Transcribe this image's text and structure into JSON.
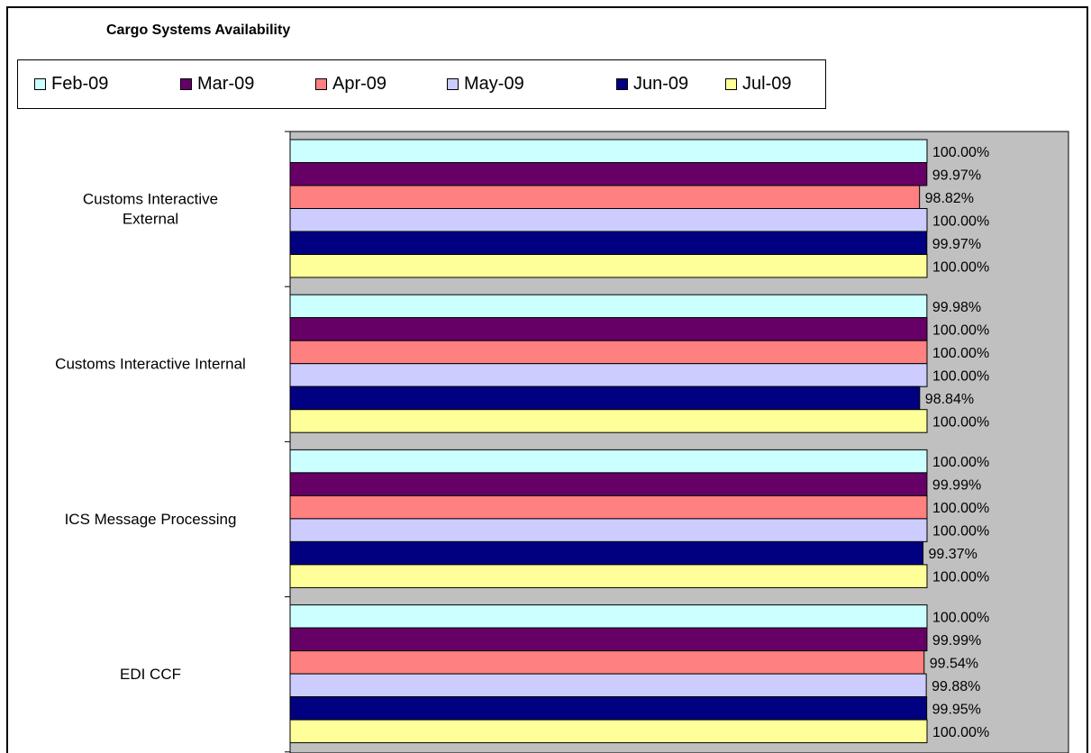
{
  "chart_data": {
    "type": "bar",
    "orientation": "horizontal",
    "title": "Cargo Systems Availability",
    "xlim": [
      0.0,
      1.0
    ],
    "grid": false,
    "legend_position": "top",
    "categories": [
      [
        "Customs Interactive",
        "External"
      ],
      [
        "Customs Interactive Internal"
      ],
      [
        "ICS Message Processing"
      ],
      [
        "EDI CCF"
      ]
    ],
    "series": [
      {
        "name": "Feb-09",
        "color": "#ccffff",
        "values": [
          1.0,
          0.9998,
          1.0,
          1.0
        ],
        "labels": [
          "100.00%",
          "99.98%",
          "100.00%",
          "100.00%"
        ]
      },
      {
        "name": "Mar-09",
        "color": "#660066",
        "values": [
          0.9997,
          1.0,
          0.9999,
          0.9999
        ],
        "labels": [
          "99.97%",
          "100.00%",
          "99.99%",
          "99.99%"
        ]
      },
      {
        "name": "Apr-09",
        "color": "#ff8080",
        "values": [
          0.9882,
          1.0,
          1.0,
          0.9954
        ],
        "labels": [
          "98.82%",
          "100.00%",
          "100.00%",
          "99.54%"
        ]
      },
      {
        "name": "May-09",
        "color": "#ccccff",
        "values": [
          1.0,
          1.0,
          1.0,
          0.9988
        ],
        "labels": [
          "100.00%",
          "100.00%",
          "100.00%",
          "99.88%"
        ]
      },
      {
        "name": "Jun-09",
        "color": "#000080",
        "values": [
          0.9997,
          0.9884,
          0.9937,
          0.9995
        ],
        "labels": [
          "99.97%",
          "98.84%",
          "99.37%",
          "99.95%"
        ]
      },
      {
        "name": "Jul-09",
        "color": "#ffff99",
        "values": [
          1.0,
          1.0,
          1.0,
          1.0
        ],
        "labels": [
          "100.00%",
          "100.00%",
          "100.00%",
          "100.00%"
        ]
      }
    ],
    "plot_background": "#c0c0c0"
  }
}
